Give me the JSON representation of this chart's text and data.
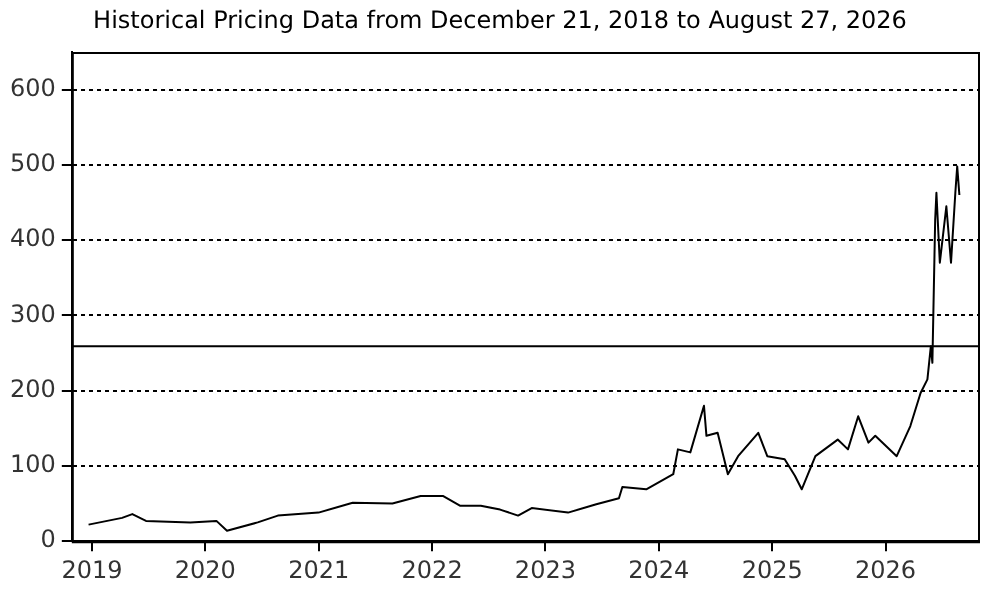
{
  "chart_data": {
    "type": "line",
    "title": "Historical Pricing Data from December 21, 2018 to August 27, 2026",
    "x": [
      "2018-12-21",
      "2019-04-08",
      "2019-05-11",
      "2019-06-24",
      "2019-11-14",
      "2020-02-06",
      "2020-03-11",
      "2020-06-18",
      "2020-08-22",
      "2020-12-31",
      "2021-04-20",
      "2021-08-26",
      "2021-11-25",
      "2022-02-06",
      "2022-04-02",
      "2022-06-07",
      "2022-08-08",
      "2022-10-05",
      "2022-11-18",
      "2023-03-15",
      "2023-06-14",
      "2023-08-26",
      "2023-09-06",
      "2023-11-22",
      "2024-02-17",
      "2024-03-03",
      "2024-04-12",
      "2024-05-26",
      "2024-06-03",
      "2024-07-09",
      "2024-08-11",
      "2024-09-13",
      "2024-11-17",
      "2024-12-16",
      "2025-02-10",
      "2025-03-15",
      "2025-04-06",
      "2025-05-20",
      "2025-07-31",
      "2025-09-02",
      "2025-10-05",
      "2025-11-07",
      "2025-11-29",
      "2026-02-06",
      "2026-03-22",
      "2026-04-24",
      "2026-05-16",
      "2026-05-27",
      "2026-06-01",
      "2026-06-10",
      "2026-06-14",
      "2026-06-25",
      "2026-07-16",
      "2026-07-31",
      "2026-08-14",
      "2026-08-20",
      "2026-08-27"
    ],
    "series": [
      {
        "color": "#000000",
        "values": [
          22,
          31,
          36,
          27,
          25,
          27,
          14,
          25,
          34,
          38,
          51,
          50,
          60,
          60,
          47,
          47,
          42,
          34,
          44,
          38,
          49,
          57,
          72,
          69,
          89,
          122,
          118,
          180,
          140,
          144,
          89,
          113,
          144,
          113,
          109,
          87,
          69,
          113,
          135,
          122,
          166,
          131,
          140,
          113,
          153,
          197,
          215,
          259,
          237,
          427,
          463,
          370,
          445,
          370,
          463,
          498,
          460
        ]
      }
    ],
    "xlim": [
      "2018-10-28",
      "2026-10-26"
    ],
    "xticks": [
      {
        "value": "2019-01-01",
        "label": "2019"
      },
      {
        "value": "2020-01-01",
        "label": "2020"
      },
      {
        "value": "2021-01-01",
        "label": "2021"
      },
      {
        "value": "2022-01-01",
        "label": "2022"
      },
      {
        "value": "2023-01-01",
        "label": "2023"
      },
      {
        "value": "2024-01-01",
        "label": "2024"
      },
      {
        "value": "2025-01-01",
        "label": "2025"
      },
      {
        "value": "2026-01-01",
        "label": "2026"
      }
    ],
    "ylim": [
      0,
      650
    ],
    "yticks": [
      0,
      100,
      200,
      300,
      400,
      500,
      600
    ],
    "grid": "y",
    "legend": false,
    "marker": "none",
    "line_style": "solid",
    "ref_lines": [
      {
        "axis": "y",
        "value": 259,
        "color": "#000000"
      }
    ]
  }
}
